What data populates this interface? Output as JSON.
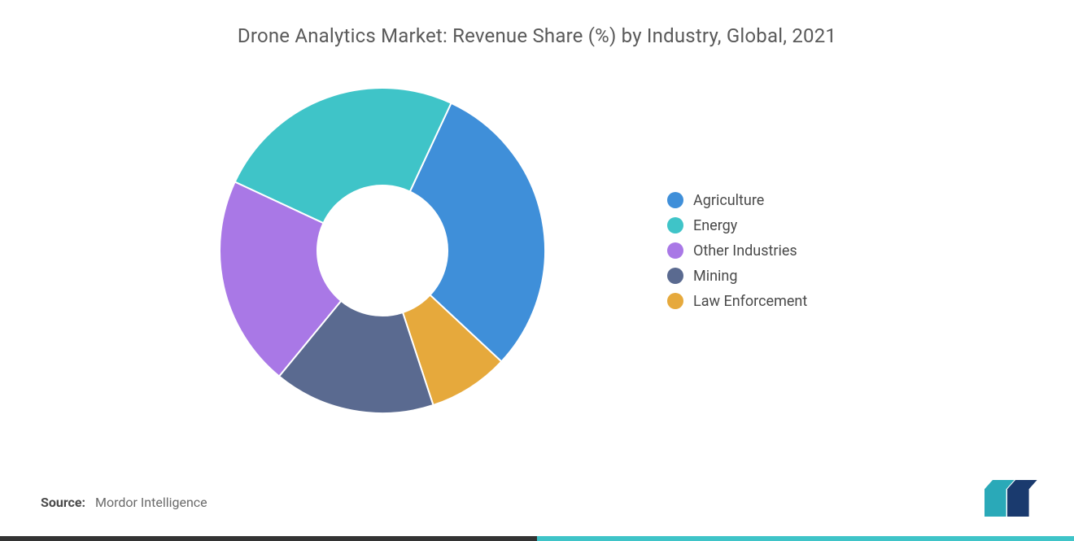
{
  "title": "Drone Analytics Market: Revenue Share (%) by Industry, Global, 2021",
  "source_label": "Source:",
  "source_value": "Mordor Intelligence",
  "chart": {
    "type": "donut",
    "start_angle_deg": 25,
    "direction": "clockwise",
    "inner_radius_ratio": 0.4,
    "outer_radius": 200,
    "background_color": "#ffffff",
    "slices": [
      {
        "label": "Agriculture",
        "value": 30,
        "color": "#3f8fd9"
      },
      {
        "label": "Law Enforcement",
        "value": 8,
        "color": "#e6a93c"
      },
      {
        "label": "Mining",
        "value": 16,
        "color": "#5a6a90"
      },
      {
        "label": "Other Industries",
        "value": 21,
        "color": "#a978e6"
      },
      {
        "label": "Energy",
        "value": 25,
        "color": "#3fc4c8"
      }
    ],
    "legend_order": [
      "Agriculture",
      "Energy",
      "Other Industries",
      "Mining",
      "Law Enforcement"
    ],
    "title_fontsize": 24,
    "title_color": "#5a5a5a",
    "legend_fontsize": 18,
    "legend_color": "#4a4a4a"
  },
  "logo": {
    "bar_color_1": "#2aa9b8",
    "bar_color_2": "#1a3a6e",
    "width": 70,
    "height": 45
  },
  "border_colors": [
    "#333333",
    "#3fc4c8"
  ]
}
